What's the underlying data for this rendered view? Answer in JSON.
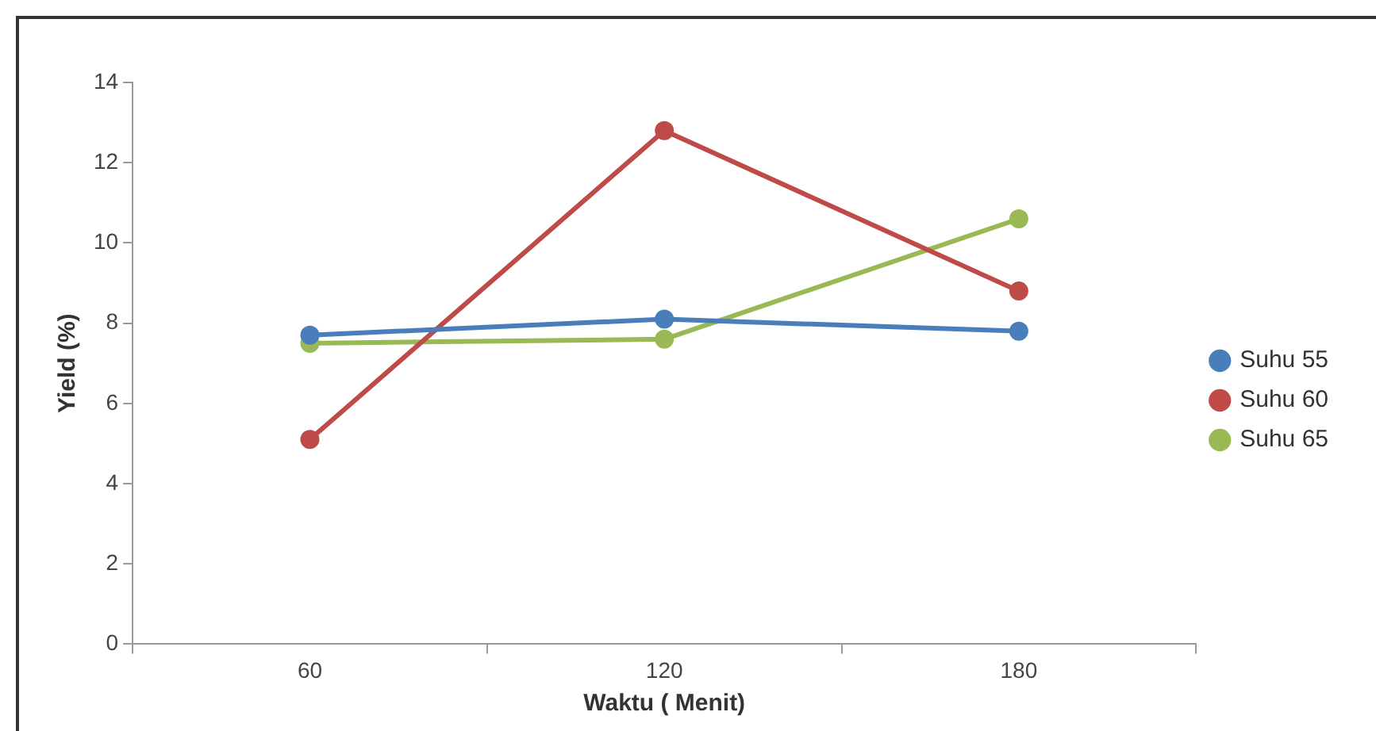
{
  "chart_data": {
    "type": "line",
    "xlabel": "Waktu ( Menit)",
    "ylabel": "Yield (%)",
    "categories": [
      "60",
      "120",
      "180"
    ],
    "series": [
      {
        "name": "Suhu 55",
        "color": "#4a7ebb",
        "values": [
          7.7,
          8.1,
          7.8
        ]
      },
      {
        "name": "Suhu 60",
        "color": "#be4b48",
        "values": [
          5.1,
          12.8,
          8.8
        ]
      },
      {
        "name": "Suhu 65",
        "color": "#98b954",
        "values": [
          7.5,
          7.6,
          10.6
        ]
      }
    ],
    "ylim": [
      0,
      14
    ],
    "yticks": [
      0,
      2,
      4,
      6,
      8,
      10,
      12,
      14
    ],
    "grid": false,
    "legend": "right",
    "marker": "circle",
    "line_style": "solid"
  }
}
